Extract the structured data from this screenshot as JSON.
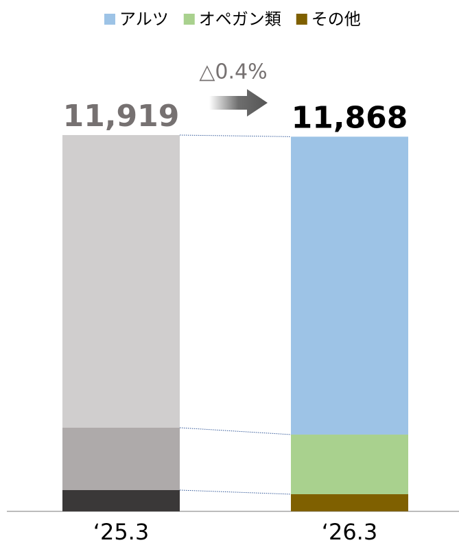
{
  "chart_data": {
    "type": "stacked_bar",
    "categories": [
      "‘25.3",
      "‘26.3"
    ],
    "series": [
      {
        "name": "その他",
        "color": "#7f6000",
        "point_colors": [
          "#3a3838",
          "#7f6000"
        ],
        "values": [
          673,
          543
        ]
      },
      {
        "name": "オペガン類",
        "color": "#a9d18e",
        "point_colors": [
          "#aeaaaa",
          "#a9d18e"
        ],
        "values": [
          1976,
          1889
        ]
      },
      {
        "name": "アルツ",
        "color": "#9dc3e6",
        "point_colors": [
          "#d0cece",
          "#9dc3e6"
        ],
        "values": [
          9270,
          9436
        ]
      }
    ],
    "legend_order": [
      2,
      1,
      0
    ],
    "totals": {
      "values": [
        11919,
        11868
      ],
      "value_labels": [
        "11,919",
        "11,868"
      ],
      "colors": [
        "#767171",
        "#000000"
      ]
    },
    "annotation": "△0.4%",
    "ylim": [
      0,
      12000
    ]
  }
}
